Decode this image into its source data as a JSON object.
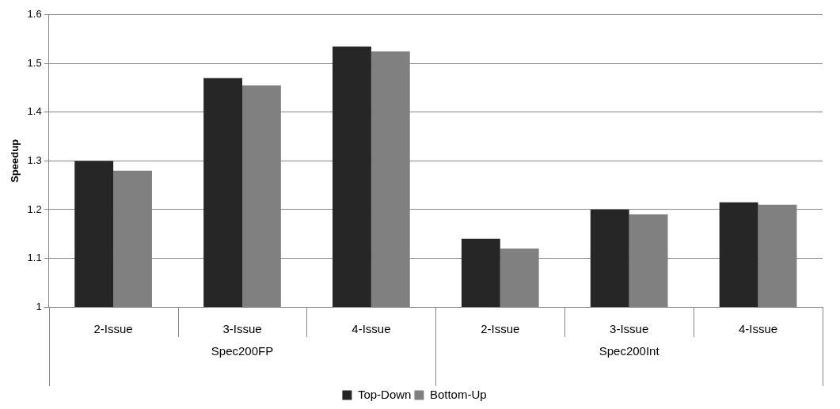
{
  "chart_data": {
    "type": "bar",
    "ylabel": "Speedup",
    "categories": [
      "2-Issue",
      "3-Issue",
      "4-Issue",
      "2-Issue",
      "3-Issue",
      "4-Issue"
    ],
    "series": [
      {
        "name": "Top-Down",
        "color": "#262626",
        "values": [
          1.3,
          1.47,
          1.535,
          1.14,
          1.2,
          1.215
        ]
      },
      {
        "name": "Bottom-Up",
        "color": "#808080",
        "values": [
          1.28,
          1.455,
          1.525,
          1.12,
          1.19,
          1.21
        ]
      }
    ],
    "ylim": [
      1,
      1.6
    ],
    "yticks": [
      1,
      1.1,
      1.2,
      1.3,
      1.4,
      1.5,
      1.6
    ],
    "grid": "y",
    "legend": "bottom",
    "annotations": [
      "Spec200FP",
      "Spec200Int"
    ]
  }
}
